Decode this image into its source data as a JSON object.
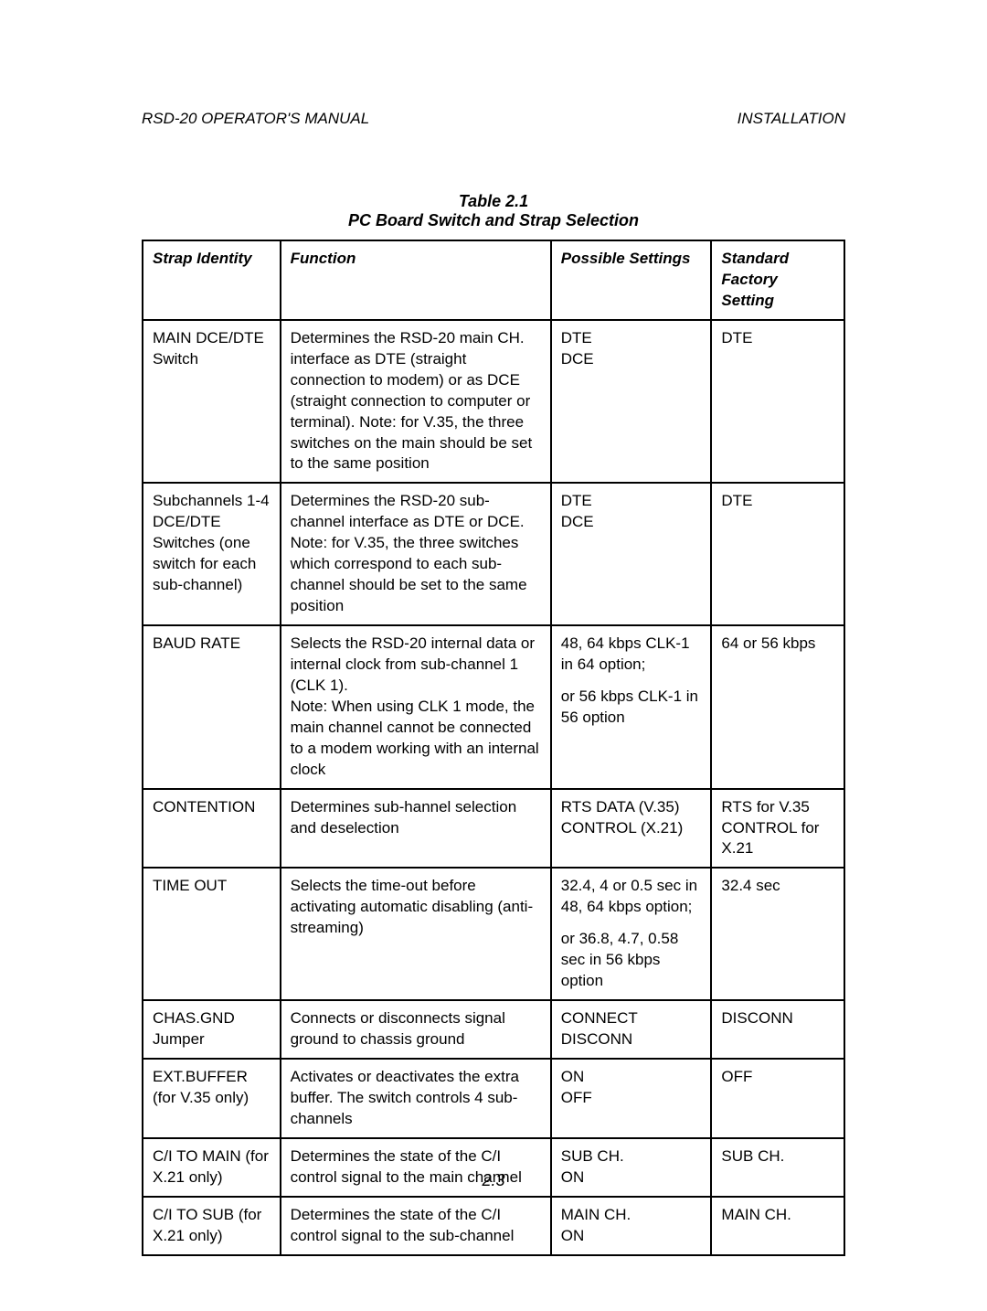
{
  "header": {
    "left": "RSD-20 OPERATOR'S MANUAL",
    "right": "INSTALLATION"
  },
  "caption": {
    "number": "Table 2.1",
    "title": "PC Board Switch and Strap Selection"
  },
  "columns": {
    "identity": "Strap Identity",
    "function": "Function",
    "settings": "Possible Settings",
    "factory": "Standard Factory Setting"
  },
  "rows": [
    {
      "identity": "MAIN DCE/DTE Switch",
      "function": "Determines the RSD-20 main CH. interface as DTE (straight connection to modem) or as DCE (straight connection to computer or terminal). Note: for V.35, the three switches on the main should be set to the same position",
      "settings_a": "DTE\nDCE",
      "settings_b": "",
      "factory": "DTE"
    },
    {
      "identity": "Subchannels 1-4 DCE/DTE Switches (one switch for each sub-channel)",
      "function": "Determines the RSD-20 sub-channel interface as DTE or DCE. Note: for V.35, the three switches which correspond to each sub-channel should be set to the same position",
      "settings_a": "DTE\nDCE",
      "settings_b": "",
      "factory": "DTE"
    },
    {
      "identity": "BAUD RATE",
      "function": "Selects the RSD-20 internal data or internal clock from sub-channel 1 (CLK 1).\nNote: When using CLK 1 mode, the main channel cannot be connected to a modem working with an internal clock",
      "settings_a": "48, 64 kbps CLK-1 in 64 option;",
      "settings_b": "or 56 kbps CLK-1 in 56 option",
      "factory": "64 or 56 kbps"
    },
    {
      "identity": "CONTENTION",
      "function": "Determines sub-hannel selection and deselection",
      "settings_a": "RTS DATA (V.35) CONTROL (X.21)",
      "settings_b": "",
      "factory": "RTS for V.35 CONTROL for X.21"
    },
    {
      "identity": "TIME OUT",
      "function": "Selects the time-out before activating automatic disabling (anti-streaming)",
      "settings_a": "32.4, 4 or 0.5 sec in 48, 64 kbps option;",
      "settings_b": "or 36.8, 4.7, 0.58 sec in 56 kbps option",
      "factory": "32.4 sec"
    },
    {
      "identity": "CHAS.GND Jumper",
      "function": "Connects or disconnects signal ground to chassis ground",
      "settings_a": "CONNECT\nDISCONN",
      "settings_b": "",
      "factory": "DISCONN"
    },
    {
      "identity": "EXT.BUFFER (for V.35 only)",
      "function": "Activates or deactivates the extra buffer. The switch controls 4 sub-channels",
      "settings_a": "ON\nOFF",
      "settings_b": "",
      "factory": "OFF"
    },
    {
      "identity": "C/I TO MAIN (for X.21 only)",
      "function": "Determines the state of the C/I control signal to the main channel",
      "settings_a": "SUB CH.\nON",
      "settings_b": "",
      "factory": "SUB CH."
    },
    {
      "identity": "C/I TO SUB (for X.21 only)",
      "function": "Determines the state of the C/I control signal to the sub-channel",
      "settings_a": "MAIN CH.\nON",
      "settings_b": "",
      "factory": "MAIN CH."
    }
  ],
  "pageNumber": "2.3"
}
